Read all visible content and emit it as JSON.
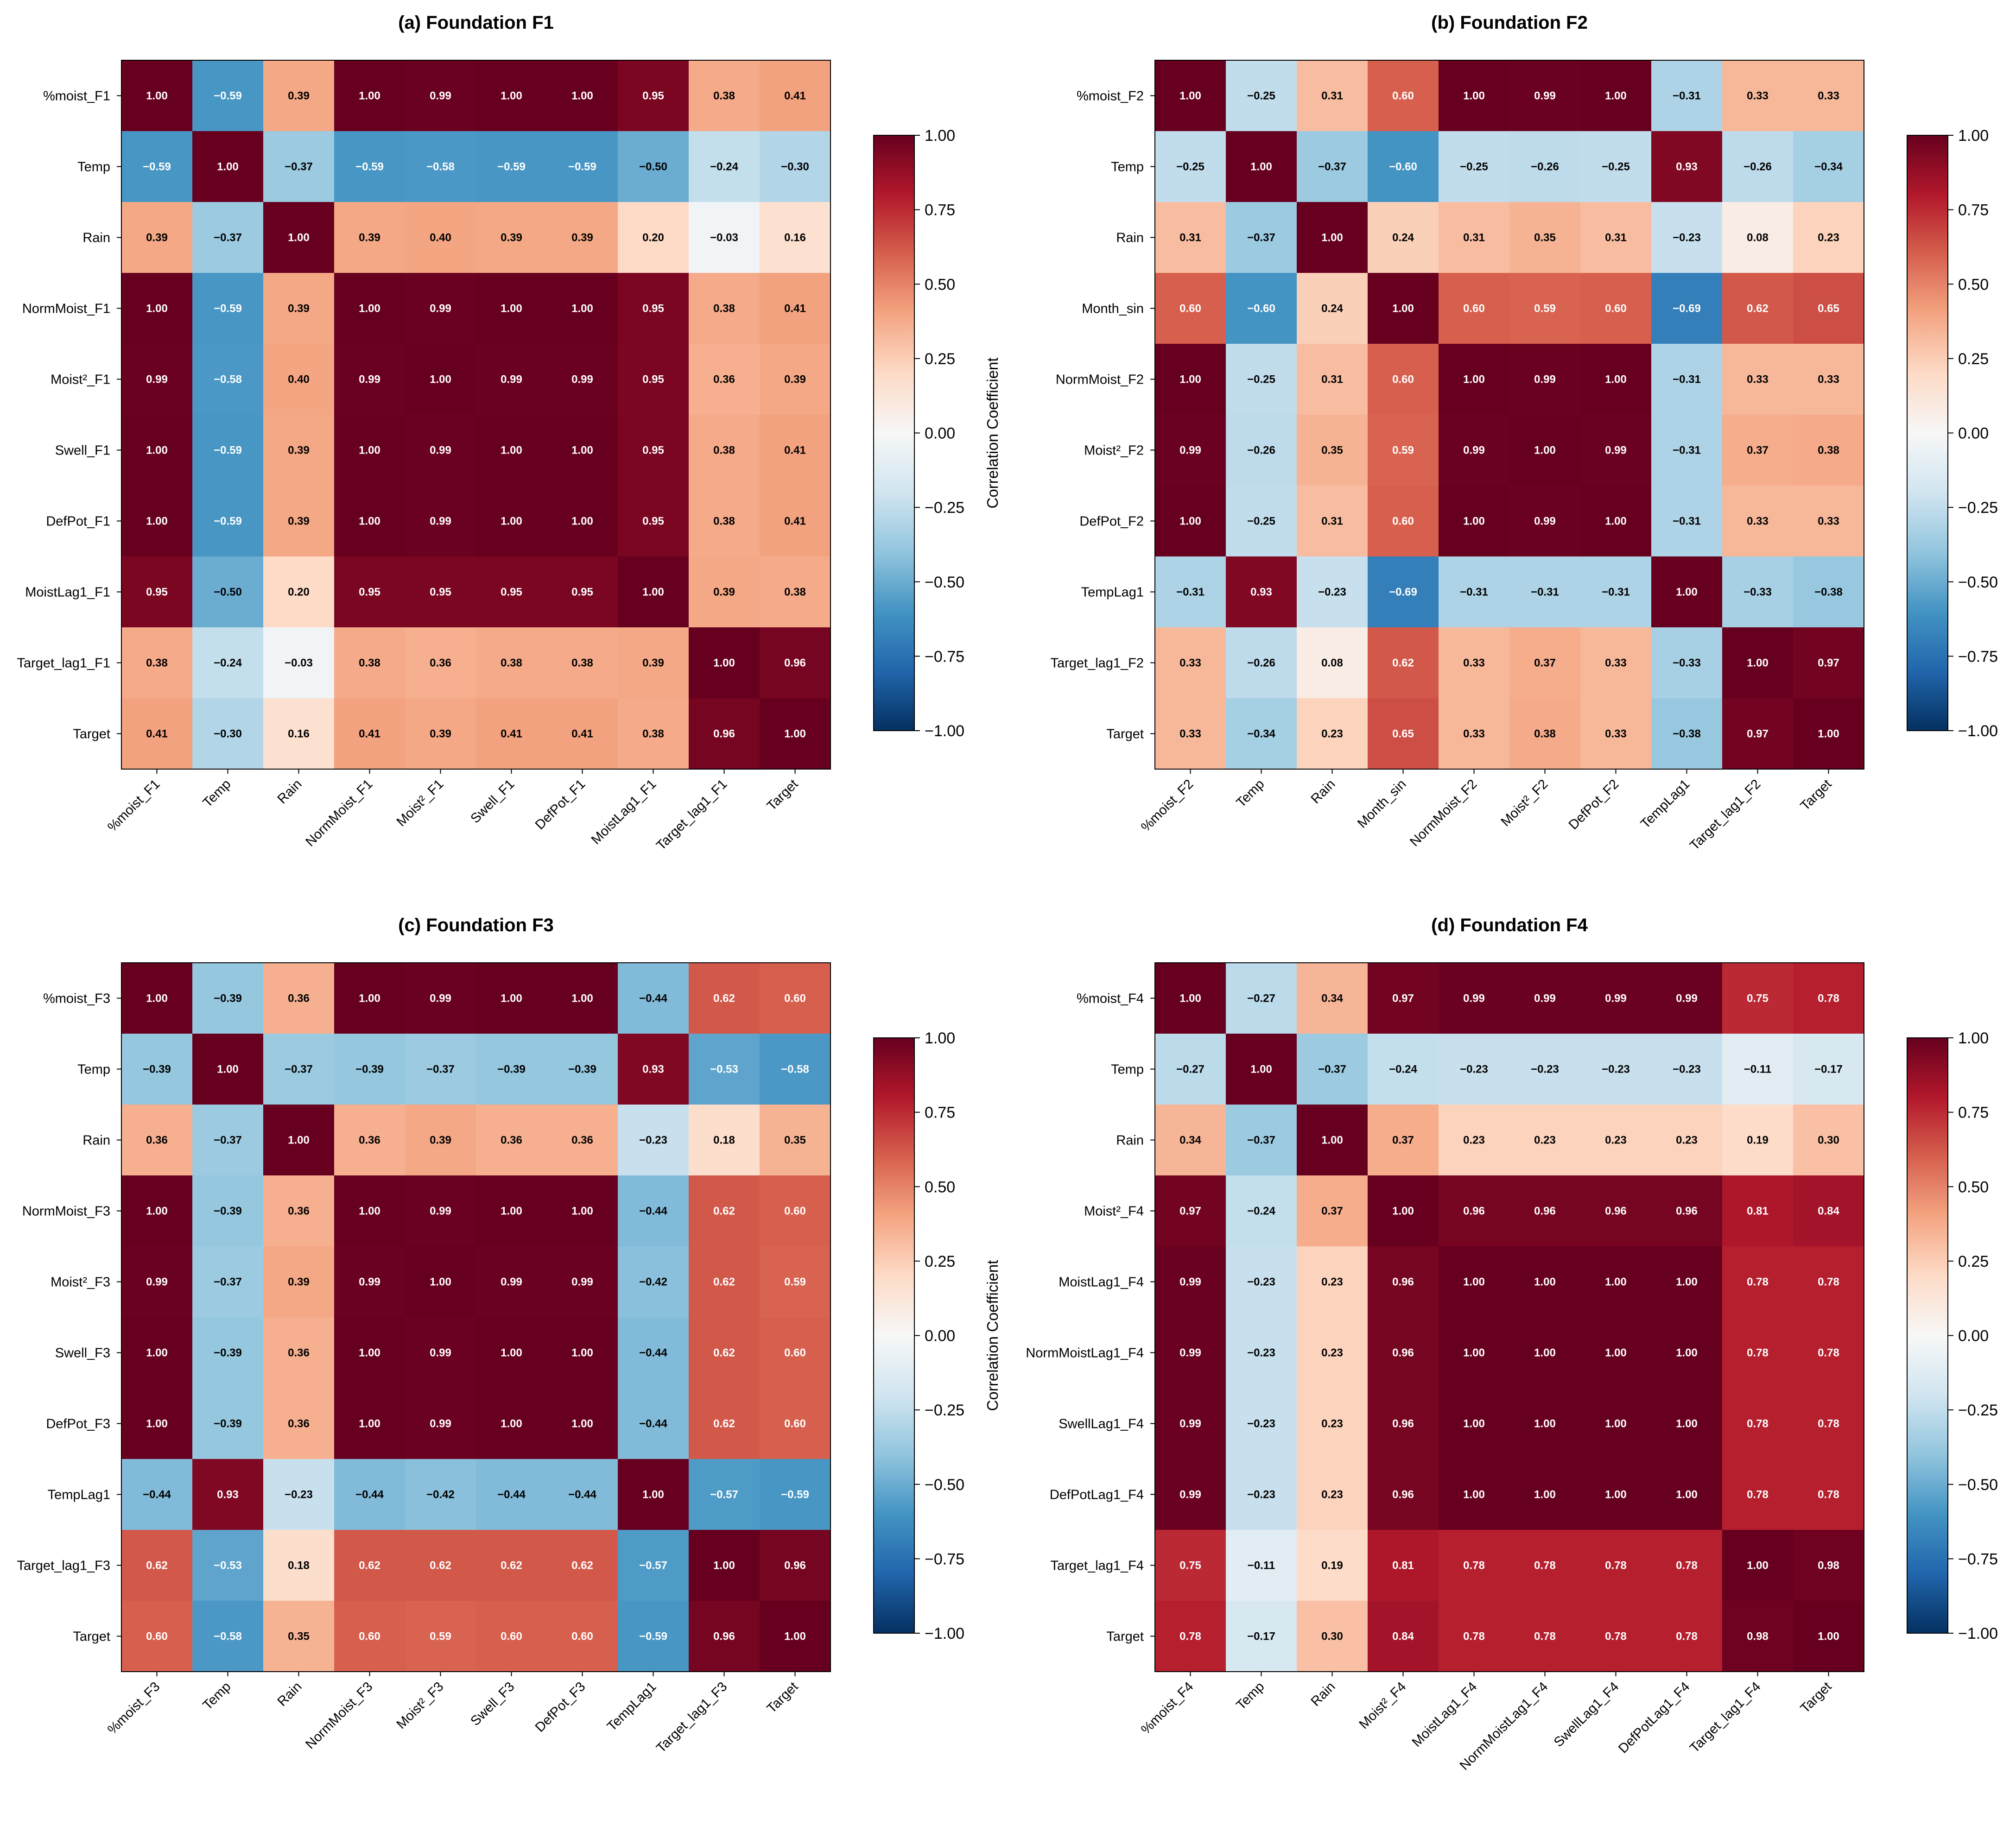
{
  "chart_data": [
    {
      "type": "heatmap",
      "title": "(a) Foundation F1",
      "labels": [
        "%moist_F1",
        "Temp",
        "Rain",
        "NormMoist_F1",
        "Moist²_F1",
        "Swell_F1",
        "DefPot_F1",
        "MoistLag1_F1",
        "Target_lag1_F1",
        "Target"
      ],
      "values": [
        [
          1.0,
          -0.59,
          0.39,
          1.0,
          0.99,
          1.0,
          1.0,
          0.95,
          0.38,
          0.41
        ],
        [
          -0.59,
          1.0,
          -0.37,
          -0.59,
          -0.58,
          -0.59,
          -0.59,
          -0.5,
          -0.24,
          -0.3
        ],
        [
          0.39,
          -0.37,
          1.0,
          0.39,
          0.4,
          0.39,
          0.39,
          0.2,
          -0.03,
          0.16
        ],
        [
          1.0,
          -0.59,
          0.39,
          1.0,
          0.99,
          1.0,
          1.0,
          0.95,
          0.38,
          0.41
        ],
        [
          0.99,
          -0.58,
          0.4,
          0.99,
          1.0,
          0.99,
          0.99,
          0.95,
          0.36,
          0.39
        ],
        [
          1.0,
          -0.59,
          0.39,
          1.0,
          0.99,
          1.0,
          1.0,
          0.95,
          0.38,
          0.41
        ],
        [
          1.0,
          -0.59,
          0.39,
          1.0,
          0.99,
          1.0,
          1.0,
          0.95,
          0.38,
          0.41
        ],
        [
          0.95,
          -0.5,
          0.2,
          0.95,
          0.95,
          0.95,
          0.95,
          1.0,
          0.39,
          0.38
        ],
        [
          0.38,
          -0.24,
          -0.03,
          0.38,
          0.36,
          0.38,
          0.38,
          0.39,
          1.0,
          0.96
        ],
        [
          0.41,
          -0.3,
          0.16,
          0.41,
          0.39,
          0.41,
          0.41,
          0.38,
          0.96,
          1.0
        ]
      ]
    },
    {
      "type": "heatmap",
      "title": "(b) Foundation F2",
      "labels": [
        "%moist_F2",
        "Temp",
        "Rain",
        "Month_sin",
        "NormMoist_F2",
        "Moist²_F2",
        "DefPot_F2",
        "TempLag1",
        "Target_lag1_F2",
        "Target"
      ],
      "values": [
        [
          1.0,
          -0.25,
          0.31,
          0.6,
          1.0,
          0.99,
          1.0,
          -0.31,
          0.33,
          0.33
        ],
        [
          -0.25,
          1.0,
          -0.37,
          -0.6,
          -0.25,
          -0.26,
          -0.25,
          0.93,
          -0.26,
          -0.34
        ],
        [
          0.31,
          -0.37,
          1.0,
          0.24,
          0.31,
          0.35,
          0.31,
          -0.23,
          0.08,
          0.23
        ],
        [
          0.6,
          -0.6,
          0.24,
          1.0,
          0.6,
          0.59,
          0.6,
          -0.69,
          0.62,
          0.65
        ],
        [
          1.0,
          -0.25,
          0.31,
          0.6,
          1.0,
          0.99,
          1.0,
          -0.31,
          0.33,
          0.33
        ],
        [
          0.99,
          -0.26,
          0.35,
          0.59,
          0.99,
          1.0,
          0.99,
          -0.31,
          0.37,
          0.38
        ],
        [
          1.0,
          -0.25,
          0.31,
          0.6,
          1.0,
          0.99,
          1.0,
          -0.31,
          0.33,
          0.33
        ],
        [
          -0.31,
          0.93,
          -0.23,
          -0.69,
          -0.31,
          -0.31,
          -0.31,
          1.0,
          -0.33,
          -0.38
        ],
        [
          0.33,
          -0.26,
          0.08,
          0.62,
          0.33,
          0.37,
          0.33,
          -0.33,
          1.0,
          0.97
        ],
        [
          0.33,
          -0.34,
          0.23,
          0.65,
          0.33,
          0.38,
          0.33,
          -0.38,
          0.97,
          1.0
        ]
      ]
    },
    {
      "type": "heatmap",
      "title": "(c) Foundation F3",
      "labels": [
        "%moist_F3",
        "Temp",
        "Rain",
        "NormMoist_F3",
        "Moist²_F3",
        "Swell_F3",
        "DefPot_F3",
        "TempLag1",
        "Target_lag1_F3",
        "Target"
      ],
      "values": [
        [
          1.0,
          -0.39,
          0.36,
          1.0,
          0.99,
          1.0,
          1.0,
          -0.44,
          0.62,
          0.6
        ],
        [
          -0.39,
          1.0,
          -0.37,
          -0.39,
          -0.37,
          -0.39,
          -0.39,
          0.93,
          -0.53,
          -0.58
        ],
        [
          0.36,
          -0.37,
          1.0,
          0.36,
          0.39,
          0.36,
          0.36,
          -0.23,
          0.18,
          0.35
        ],
        [
          1.0,
          -0.39,
          0.36,
          1.0,
          0.99,
          1.0,
          1.0,
          -0.44,
          0.62,
          0.6
        ],
        [
          0.99,
          -0.37,
          0.39,
          0.99,
          1.0,
          0.99,
          0.99,
          -0.42,
          0.62,
          0.59
        ],
        [
          1.0,
          -0.39,
          0.36,
          1.0,
          0.99,
          1.0,
          1.0,
          -0.44,
          0.62,
          0.6
        ],
        [
          1.0,
          -0.39,
          0.36,
          1.0,
          0.99,
          1.0,
          1.0,
          -0.44,
          0.62,
          0.6
        ],
        [
          -0.44,
          0.93,
          -0.23,
          -0.44,
          -0.42,
          -0.44,
          -0.44,
          1.0,
          -0.57,
          -0.59
        ],
        [
          0.62,
          -0.53,
          0.18,
          0.62,
          0.62,
          0.62,
          0.62,
          -0.57,
          1.0,
          0.96
        ],
        [
          0.6,
          -0.58,
          0.35,
          0.6,
          0.59,
          0.6,
          0.6,
          -0.59,
          0.96,
          1.0
        ]
      ]
    },
    {
      "type": "heatmap",
      "title": "(d) Foundation F4",
      "labels": [
        "%moist_F4",
        "Temp",
        "Rain",
        "Moist²_F4",
        "MoistLag1_F4",
        "NormMoistLag1_F4",
        "SwellLag1_F4",
        "DefPotLag1_F4",
        "Target_lag1_F4",
        "Target"
      ],
      "values": [
        [
          1.0,
          -0.27,
          0.34,
          0.97,
          0.99,
          0.99,
          0.99,
          0.99,
          0.75,
          0.78
        ],
        [
          -0.27,
          1.0,
          -0.37,
          -0.24,
          -0.23,
          -0.23,
          -0.23,
          -0.23,
          -0.11,
          -0.17
        ],
        [
          0.34,
          -0.37,
          1.0,
          0.37,
          0.23,
          0.23,
          0.23,
          0.23,
          0.19,
          0.3
        ],
        [
          0.97,
          -0.24,
          0.37,
          1.0,
          0.96,
          0.96,
          0.96,
          0.96,
          0.81,
          0.84
        ],
        [
          0.99,
          -0.23,
          0.23,
          0.96,
          1.0,
          1.0,
          1.0,
          1.0,
          0.78,
          0.78
        ],
        [
          0.99,
          -0.23,
          0.23,
          0.96,
          1.0,
          1.0,
          1.0,
          1.0,
          0.78,
          0.78
        ],
        [
          0.99,
          -0.23,
          0.23,
          0.96,
          1.0,
          1.0,
          1.0,
          1.0,
          0.78,
          0.78
        ],
        [
          0.99,
          -0.23,
          0.23,
          0.96,
          1.0,
          1.0,
          1.0,
          1.0,
          0.78,
          0.78
        ],
        [
          0.75,
          -0.11,
          0.19,
          0.81,
          0.78,
          0.78,
          0.78,
          0.78,
          1.0,
          0.98
        ],
        [
          0.78,
          -0.17,
          0.3,
          0.84,
          0.78,
          0.78,
          0.78,
          0.78,
          0.98,
          1.0
        ]
      ]
    }
  ],
  "colorbar": {
    "label": "Correlation Coefficient",
    "range": [
      -1.0,
      1.0
    ],
    "ticks": [
      "1.00",
      "0.75",
      "0.50",
      "0.25",
      "0.00",
      "−0.25",
      "−0.50",
      "−0.75",
      "−1.00"
    ],
    "colormap": "RdBu_r",
    "stops": [
      "#053061",
      "#2166ac",
      "#4393c3",
      "#92c5de",
      "#d1e5f0",
      "#f7f7f7",
      "#fddbc7",
      "#f4a582",
      "#d6604d",
      "#b2182b",
      "#67001f"
    ]
  }
}
